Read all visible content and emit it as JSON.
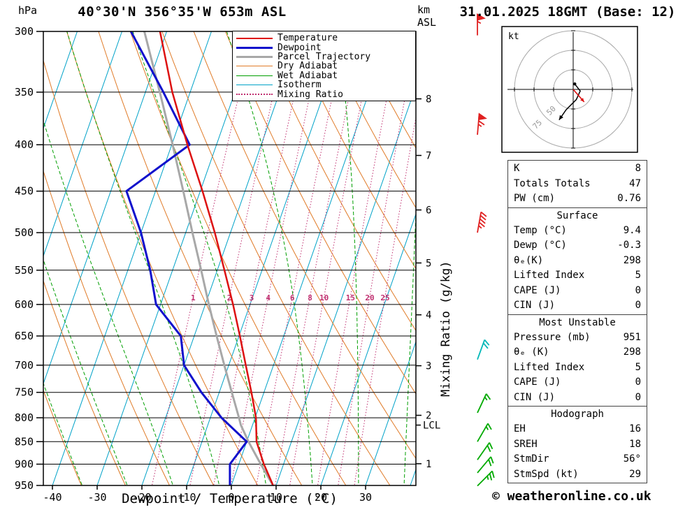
{
  "header": {
    "pressure_unit": "hPa",
    "title": "40°30'N 356°35'W 653m ASL",
    "date_title": "31.01.2025 18GMT (Base: 12)",
    "km_label": "km",
    "asl_label": "ASL"
  },
  "axes": {
    "xlabel": "Dewpoint / Temperature (°C)",
    "mixing_ratio_axis_label": "Mixing Ratio (g/kg)"
  },
  "legend": {
    "items": [
      {
        "label": "Temperature",
        "color": "#dd1111",
        "style": "solid",
        "weight": 2
      },
      {
        "label": "Dewpoint",
        "color": "#1111cc",
        "style": "solid",
        "weight": 3
      },
      {
        "label": "Parcel Trajectory",
        "color": "#a8a8a8",
        "style": "solid",
        "weight": 3
      },
      {
        "label": "Dry Adiabat",
        "color": "#e07b28",
        "style": "solid",
        "weight": 1
      },
      {
        "label": "Wet Adiabat",
        "color": "#009e00",
        "style": "solid",
        "weight": 1
      },
      {
        "label": "Isotherm",
        "color": "#00a2c8",
        "style": "solid",
        "weight": 1
      },
      {
        "label": "Mixing Ratio",
        "color": "#c03070",
        "style": "dotted",
        "weight": 2
      }
    ]
  },
  "colors": {
    "temperature": "#dd1111",
    "dewpoint": "#1111cc",
    "parcel": "#a8a8a8",
    "dry_adiabat": "#e07b28",
    "wet_adiabat": "#009e00",
    "isotherm": "#00a2c8",
    "mixing_ratio": "#c03070"
  },
  "chart_data": {
    "type": "skewt-log-p",
    "pressure_axis": {
      "unit": "hPa",
      "scale": "log",
      "range": [
        300,
        950
      ],
      "ticks": [
        300,
        350,
        400,
        450,
        500,
        550,
        600,
        650,
        700,
        750,
        800,
        850,
        900,
        950
      ]
    },
    "temp_axis": {
      "unit": "°C",
      "range": [
        -40,
        38
      ],
      "ticks": [
        -40,
        -30,
        -20,
        -10,
        0,
        10,
        20,
        30
      ]
    },
    "km_axis": {
      "unit": "km ASL",
      "ticks": [
        1,
        2,
        3,
        4,
        5,
        6,
        7,
        8
      ]
    },
    "lcl": {
      "pressure": 815,
      "label": "LCL"
    },
    "mixing_ratio_lines": [
      1,
      2,
      3,
      4,
      6,
      8,
      10,
      15,
      20,
      25
    ],
    "sounding": {
      "pressure": [
        951,
        900,
        850,
        800,
        750,
        700,
        650,
        600,
        550,
        500,
        450,
        400,
        350,
        300
      ],
      "temperature": [
        9.4,
        5.6,
        2.2,
        0.2,
        -2.8,
        -6.2,
        -9.8,
        -13.8,
        -18.4,
        -23.5,
        -29.5,
        -36.5,
        -44.0,
        -51.5
      ],
      "dewpoint": [
        -0.3,
        -2.0,
        0.0,
        -7.5,
        -14.0,
        -20.0,
        -23.0,
        -31.0,
        -35.0,
        -40.0,
        -46.5,
        -36.0,
        -46.0,
        -58.0
      ]
    },
    "parcel": {
      "pressure": [
        951,
        900,
        850,
        815,
        800,
        750,
        700,
        650,
        600,
        550,
        500,
        450,
        400,
        350,
        300
      ],
      "temperature": [
        9.4,
        4.9,
        0.4,
        -2.6,
        -3.6,
        -7.2,
        -11.0,
        -15.0,
        -19.2,
        -23.6,
        -28.5,
        -33.8,
        -39.8,
        -46.8,
        -55.0
      ]
    },
    "winds": [
      {
        "pressure": 303,
        "dir": 0,
        "spd": 55,
        "color": "#e02020"
      },
      {
        "pressure": 390,
        "dir": 5,
        "spd": 65,
        "color": "#e02020"
      },
      {
        "pressure": 500,
        "dir": 10,
        "spd": 45,
        "color": "#e02020"
      },
      {
        "pressure": 690,
        "dir": 20,
        "spd": 20,
        "color": "#00b8b8"
      },
      {
        "pressure": 790,
        "dir": 25,
        "spd": 15,
        "color": "#00aa00"
      },
      {
        "pressure": 850,
        "dir": 30,
        "spd": 15,
        "color": "#00aa00"
      },
      {
        "pressure": 890,
        "dir": 35,
        "spd": 20,
        "color": "#00aa00"
      },
      {
        "pressure": 920,
        "dir": 40,
        "spd": 20,
        "color": "#00aa00"
      },
      {
        "pressure": 951,
        "dir": 45,
        "spd": 25,
        "color": "#00aa00"
      }
    ]
  },
  "hodograph": {
    "unit_label": "kt",
    "rings": [
      25,
      50,
      75
    ],
    "ring_labels": [
      "75",
      "50"
    ],
    "trace": [
      [
        2,
        7
      ],
      [
        9,
        -2
      ],
      [
        4,
        -13
      ],
      [
        -9,
        -26
      ],
      [
        -18,
        -39
      ]
    ],
    "storm_marker": [
      14,
      -16
    ]
  },
  "table": {
    "sections": [
      {
        "header": null,
        "rows": [
          [
            "K",
            "8"
          ],
          [
            "Totals Totals",
            "47"
          ],
          [
            "PW (cm)",
            "0.76"
          ]
        ]
      },
      {
        "header": "Surface",
        "rows": [
          [
            "Temp (°C)",
            "9.4"
          ],
          [
            "Dewp (°C)",
            "-0.3"
          ],
          [
            "θₑ(K)",
            "298"
          ],
          [
            "Lifted Index",
            "5"
          ],
          [
            "CAPE (J)",
            "0"
          ],
          [
            "CIN (J)",
            "0"
          ]
        ]
      },
      {
        "header": "Most Unstable",
        "rows": [
          [
            "Pressure (mb)",
            "951"
          ],
          [
            "θₑ (K)",
            "298"
          ],
          [
            "Lifted Index",
            "5"
          ],
          [
            "CAPE (J)",
            "0"
          ],
          [
            "CIN (J)",
            "0"
          ]
        ]
      },
      {
        "header": "Hodograph",
        "rows": [
          [
            "EH",
            "16"
          ],
          [
            "SREH",
            "18"
          ],
          [
            "StmDir",
            "56°"
          ],
          [
            "StmSpd (kt)",
            "29"
          ]
        ]
      }
    ]
  },
  "footer": {
    "copyright": "© weatheronline.co.uk"
  }
}
